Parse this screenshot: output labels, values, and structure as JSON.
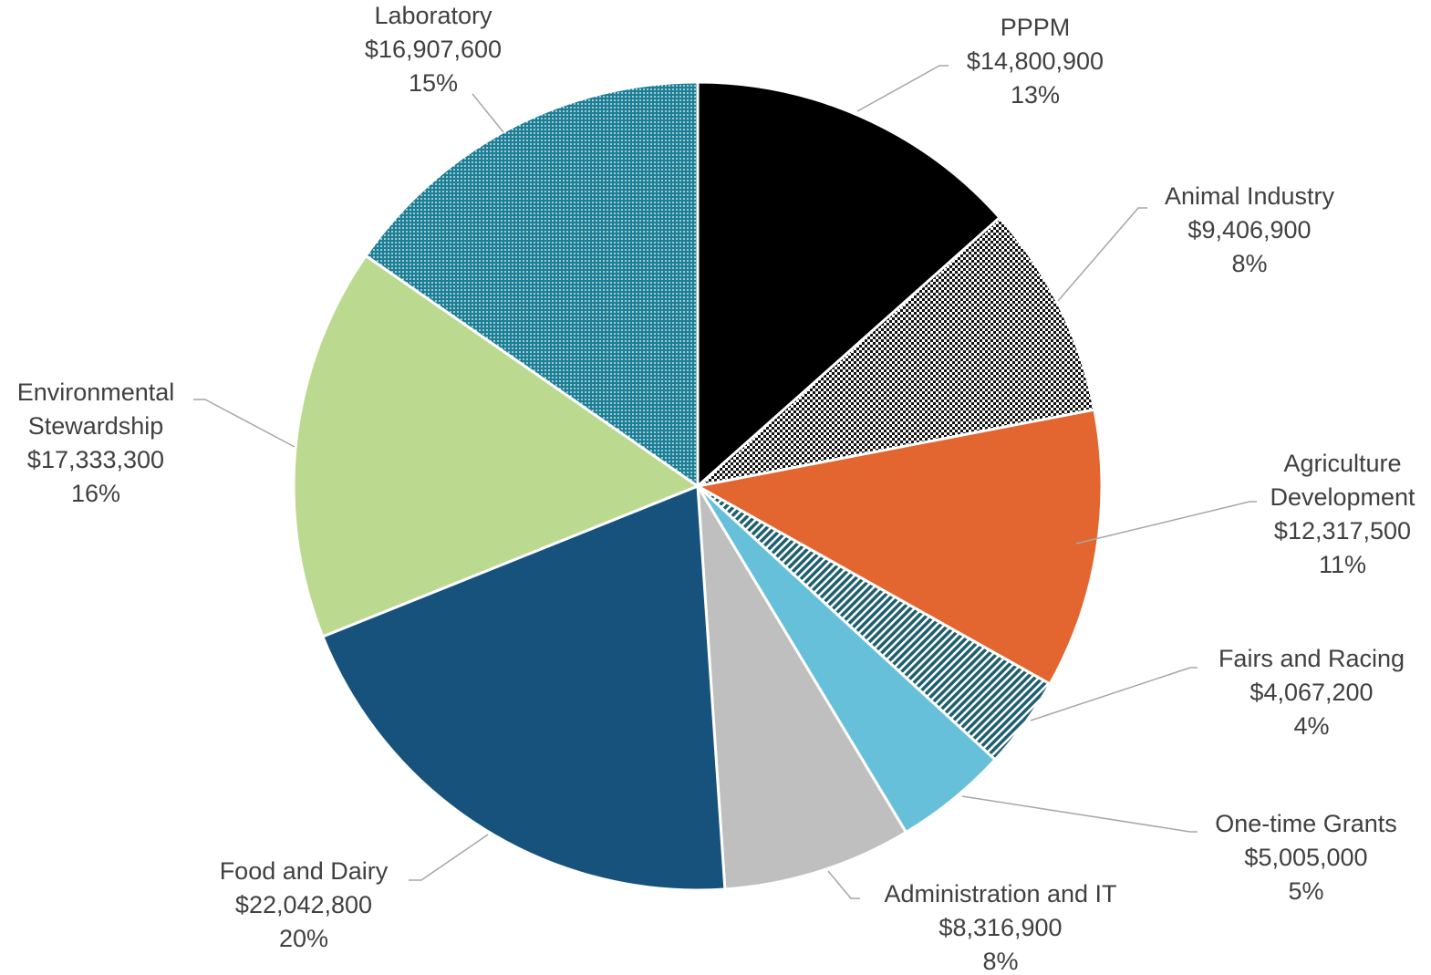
{
  "chart_data": {
    "type": "pie",
    "categories": [
      "PPPM",
      "Animal Industry",
      "Agriculture Development",
      "Fairs and Racing",
      "One-time Grants",
      "Administration and IT",
      "Food and Dairy",
      "Environmental Stewardship",
      "Laboratory"
    ],
    "values": [
      14800900,
      9406900,
      12317500,
      4067200,
      5005000,
      8316900,
      22042800,
      17333300,
      16907600
    ],
    "value_labels": [
      "$14,800,900",
      "$9,406,900",
      "$12,317,500",
      "$4,067,200",
      "$5,005,000",
      "$8,316,900",
      "$22,042,800",
      "$17,333,300",
      "$16,907,600"
    ],
    "percent_labels": [
      "13%",
      "8%",
      "11%",
      "4%",
      "5%",
      "8%",
      "20%",
      "16%",
      "15%"
    ],
    "colors": [
      "#000000",
      "url(#checker)",
      "#e36630",
      "url(#hatch)",
      "#67c0d9",
      "#bfbfbf",
      "#16527c",
      "#bcd990",
      "url(#dots)"
    ]
  }
}
